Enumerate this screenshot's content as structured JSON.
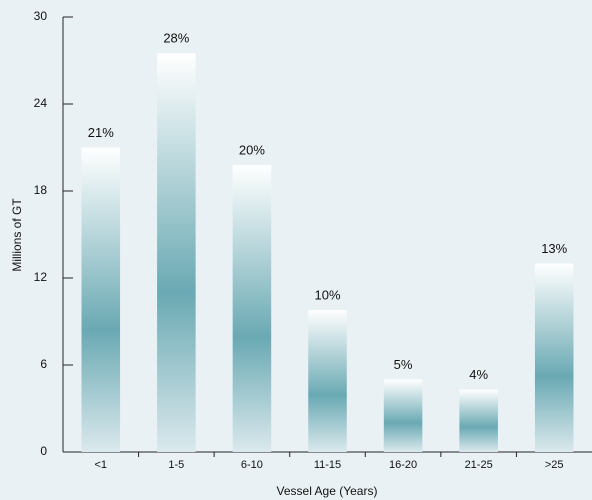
{
  "chart_data": {
    "type": "bar",
    "x_label": "Vessel Age (Years)",
    "y_label": "Millions of GT",
    "categories": [
      "<1",
      "1-5",
      "6-10",
      "11-15",
      "16-20",
      "21-25",
      ">25"
    ],
    "values": [
      21,
      27.5,
      19.8,
      9.8,
      5,
      4.3,
      13
    ],
    "share_labels": [
      "21%",
      "28%",
      "20%",
      "10%",
      "5%",
      "4%",
      "13%"
    ],
    "color": "#6aa9b3",
    "ylim": [
      0,
      30
    ],
    "yticks": [
      0,
      6,
      12,
      18,
      24,
      30
    ]
  }
}
